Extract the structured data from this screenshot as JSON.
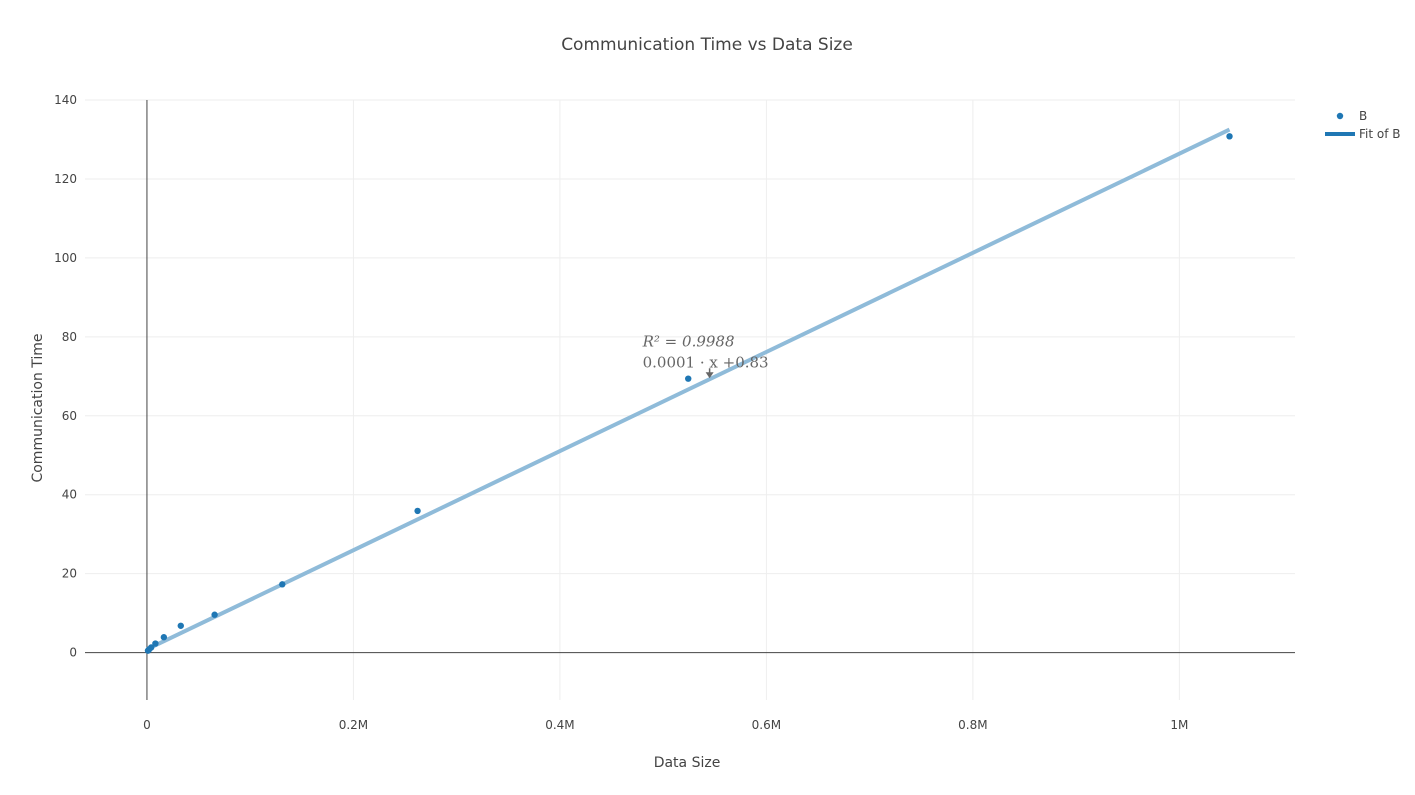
{
  "chart_data": {
    "type": "scatter",
    "title": "Communication Time vs Data Size",
    "xlabel": "Data Size",
    "ylabel": "Communication Time",
    "xlim": [
      -60000,
      1112000
    ],
    "ylim": [
      -12,
      140
    ],
    "x_ticks": [
      0,
      200000,
      400000,
      600000,
      800000,
      1000000
    ],
    "x_tick_labels": [
      "0",
      "0.2M",
      "0.4M",
      "0.6M",
      "0.8M",
      "1M"
    ],
    "y_ticks": [
      0,
      20,
      40,
      60,
      80,
      100,
      120,
      140
    ],
    "y_tick_labels": [
      "0",
      "20",
      "40",
      "60",
      "80",
      "100",
      "120",
      "140"
    ],
    "grid": true,
    "legend_position": "top-right",
    "colors": {
      "points": "#1f77b4",
      "fit_line": "#8fbbd9",
      "grid": "#eeeeee",
      "axis": "#444444",
      "annotation": "#666666"
    },
    "series": [
      {
        "name": "B",
        "mode": "markers",
        "x": [
          1024,
          2048,
          4096,
          8192,
          16384,
          32768,
          65536,
          131072,
          262144,
          524288,
          1048576
        ],
        "y": [
          0.5,
          0.8,
          1.3,
          2.3,
          3.9,
          6.8,
          9.6,
          17.3,
          35.9,
          69.4,
          130.8
        ]
      },
      {
        "name": "Fit of B",
        "mode": "line",
        "x": [
          0,
          1048576
        ],
        "y": [
          0.83,
          132.5
        ]
      }
    ],
    "annotation": {
      "line1": "R² = 0.9988",
      "line2": "0.0001 · x +0.83",
      "anchor_x": 545000,
      "anchor_y": 69.5
    }
  }
}
